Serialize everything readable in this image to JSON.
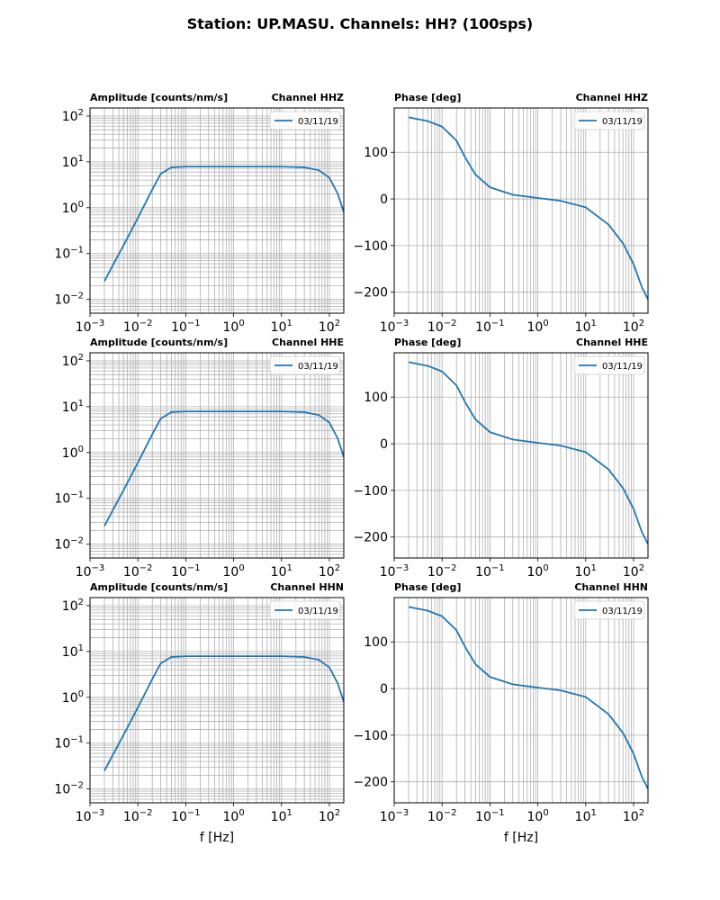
{
  "figure_title": "Station: UP.MASU. Channels: HH? (100sps)",
  "colors": {
    "series": "#1f77b4",
    "grid": "#b0b0b0",
    "frame": "#000000"
  },
  "chart_data": [
    {
      "type": "line",
      "title_left": "Amplitude [counts/nm/s]",
      "title_right": "Channel HHZ",
      "xlabel": "",
      "xscale": "log",
      "yscale": "log",
      "xlim": [
        0.001,
        200
      ],
      "ylim": [
        0.005,
        150
      ],
      "xticks": [
        0.001,
        0.01,
        0.1,
        1,
        10,
        100
      ],
      "xtick_labels": [
        [
          "10",
          "−3"
        ],
        [
          "10",
          "−2"
        ],
        [
          "10",
          "−1"
        ],
        [
          "10",
          "0"
        ],
        [
          "10",
          "1"
        ],
        [
          "10",
          "2"
        ]
      ],
      "yticks": [
        0.01,
        0.1,
        1,
        10,
        100
      ],
      "ytick_labels": [
        [
          "10",
          "−2"
        ],
        [
          "10",
          "−1"
        ],
        [
          "10",
          "0"
        ],
        [
          "10",
          "1"
        ],
        [
          "10",
          "2"
        ]
      ],
      "grid": true,
      "legend": "top-right",
      "series": [
        {
          "name": "03/11/19",
          "x": [
            0.002,
            0.005,
            0.01,
            0.02,
            0.03,
            0.05,
            0.1,
            1,
            10,
            30,
            60,
            100,
            150,
            200
          ],
          "y": [
            0.025,
            0.15,
            0.6,
            2.5,
            5.5,
            7.6,
            7.9,
            7.9,
            7.9,
            7.6,
            6.6,
            4.5,
            2.0,
            0.8
          ]
        }
      ]
    },
    {
      "type": "line",
      "title_left": "Phase [deg]",
      "title_right": "Channel HHZ",
      "xlabel": "",
      "xscale": "log",
      "yscale": "linear",
      "xlim": [
        0.001,
        200
      ],
      "ylim": [
        -245,
        195
      ],
      "xticks": [
        0.001,
        0.01,
        0.1,
        1,
        10,
        100
      ],
      "xtick_labels": [
        [
          "10",
          "−3"
        ],
        [
          "10",
          "−2"
        ],
        [
          "10",
          "−1"
        ],
        [
          "10",
          "0"
        ],
        [
          "10",
          "1"
        ],
        [
          "10",
          "2"
        ]
      ],
      "yticks": [
        100,
        0,
        -100,
        -200
      ],
      "ytick_labels": [
        [
          "100",
          ""
        ],
        [
          "0",
          ""
        ],
        [
          "−100",
          ""
        ],
        [
          "−200",
          ""
        ]
      ],
      "grid": true,
      "legend": "top-right",
      "series": [
        {
          "name": "03/11/19",
          "x": [
            0.002,
            0.005,
            0.01,
            0.02,
            0.03,
            0.05,
            0.1,
            0.3,
            1,
            3,
            10,
            30,
            60,
            100,
            150,
            200
          ],
          "y": [
            175,
            167,
            155,
            125,
            90,
            52,
            25,
            9,
            2,
            -4,
            -18,
            -55,
            -95,
            -140,
            -190,
            -215
          ]
        }
      ]
    },
    {
      "type": "line",
      "title_left": "Amplitude [counts/nm/s]",
      "title_right": "Channel HHE",
      "xlabel": "",
      "xscale": "log",
      "yscale": "log",
      "xlim": [
        0.001,
        200
      ],
      "ylim": [
        0.005,
        150
      ],
      "xticks": [
        0.001,
        0.01,
        0.1,
        1,
        10,
        100
      ],
      "xtick_labels": [
        [
          "10",
          "−3"
        ],
        [
          "10",
          "−2"
        ],
        [
          "10",
          "−1"
        ],
        [
          "10",
          "0"
        ],
        [
          "10",
          "1"
        ],
        [
          "10",
          "2"
        ]
      ],
      "yticks": [
        0.01,
        0.1,
        1,
        10,
        100
      ],
      "ytick_labels": [
        [
          "10",
          "−2"
        ],
        [
          "10",
          "−1"
        ],
        [
          "10",
          "0"
        ],
        [
          "10",
          "1"
        ],
        [
          "10",
          "2"
        ]
      ],
      "grid": true,
      "legend": "top-right",
      "series": [
        {
          "name": "03/11/19",
          "x": [
            0.002,
            0.005,
            0.01,
            0.02,
            0.03,
            0.05,
            0.1,
            1,
            10,
            30,
            60,
            100,
            150,
            200
          ],
          "y": [
            0.025,
            0.15,
            0.6,
            2.5,
            5.5,
            7.6,
            7.9,
            7.9,
            7.9,
            7.6,
            6.6,
            4.5,
            2.0,
            0.8
          ]
        }
      ]
    },
    {
      "type": "line",
      "title_left": "Phase [deg]",
      "title_right": "Channel HHE",
      "xlabel": "",
      "xscale": "log",
      "yscale": "linear",
      "xlim": [
        0.001,
        200
      ],
      "ylim": [
        -245,
        195
      ],
      "xticks": [
        0.001,
        0.01,
        0.1,
        1,
        10,
        100
      ],
      "xtick_labels": [
        [
          "10",
          "−3"
        ],
        [
          "10",
          "−2"
        ],
        [
          "10",
          "−1"
        ],
        [
          "10",
          "0"
        ],
        [
          "10",
          "1"
        ],
        [
          "10",
          "2"
        ]
      ],
      "yticks": [
        100,
        0,
        -100,
        -200
      ],
      "ytick_labels": [
        [
          "100",
          ""
        ],
        [
          "0",
          ""
        ],
        [
          "−100",
          ""
        ],
        [
          "−200",
          ""
        ]
      ],
      "grid": true,
      "legend": "top-right",
      "series": [
        {
          "name": "03/11/19",
          "x": [
            0.002,
            0.005,
            0.01,
            0.02,
            0.03,
            0.05,
            0.1,
            0.3,
            1,
            3,
            10,
            30,
            60,
            100,
            150,
            200
          ],
          "y": [
            175,
            167,
            155,
            125,
            90,
            52,
            25,
            9,
            2,
            -4,
            -18,
            -55,
            -95,
            -140,
            -190,
            -215
          ]
        }
      ]
    },
    {
      "type": "line",
      "title_left": "Amplitude [counts/nm/s]",
      "title_right": "Channel HHN",
      "xlabel": "f [Hz]",
      "xscale": "log",
      "yscale": "log",
      "xlim": [
        0.001,
        200
      ],
      "ylim": [
        0.005,
        150
      ],
      "xticks": [
        0.001,
        0.01,
        0.1,
        1,
        10,
        100
      ],
      "xtick_labels": [
        [
          "10",
          "−3"
        ],
        [
          "10",
          "−2"
        ],
        [
          "10",
          "−1"
        ],
        [
          "10",
          "0"
        ],
        [
          "10",
          "1"
        ],
        [
          "10",
          "2"
        ]
      ],
      "yticks": [
        0.01,
        0.1,
        1,
        10,
        100
      ],
      "ytick_labels": [
        [
          "10",
          "−2"
        ],
        [
          "10",
          "−1"
        ],
        [
          "10",
          "0"
        ],
        [
          "10",
          "1"
        ],
        [
          "10",
          "2"
        ]
      ],
      "grid": true,
      "legend": "top-right",
      "series": [
        {
          "name": "03/11/19",
          "x": [
            0.002,
            0.005,
            0.01,
            0.02,
            0.03,
            0.05,
            0.1,
            1,
            10,
            30,
            60,
            100,
            150,
            200
          ],
          "y": [
            0.025,
            0.15,
            0.6,
            2.5,
            5.5,
            7.6,
            7.9,
            7.9,
            7.9,
            7.6,
            6.6,
            4.5,
            2.0,
            0.8
          ]
        }
      ]
    },
    {
      "type": "line",
      "title_left": "Phase [deg]",
      "title_right": "Channel HHN",
      "xlabel": "f [Hz]",
      "xscale": "log",
      "yscale": "linear",
      "xlim": [
        0.001,
        200
      ],
      "ylim": [
        -245,
        195
      ],
      "xticks": [
        0.001,
        0.01,
        0.1,
        1,
        10,
        100
      ],
      "xtick_labels": [
        [
          "10",
          "−3"
        ],
        [
          "10",
          "−2"
        ],
        [
          "10",
          "−1"
        ],
        [
          "10",
          "0"
        ],
        [
          "10",
          "1"
        ],
        [
          "10",
          "2"
        ]
      ],
      "yticks": [
        100,
        0,
        -100,
        -200
      ],
      "ytick_labels": [
        [
          "100",
          ""
        ],
        [
          "0",
          ""
        ],
        [
          "−100",
          ""
        ],
        [
          "−200",
          ""
        ]
      ],
      "grid": true,
      "legend": "top-right",
      "series": [
        {
          "name": "03/11/19",
          "x": [
            0.002,
            0.005,
            0.01,
            0.02,
            0.03,
            0.05,
            0.1,
            0.3,
            1,
            3,
            10,
            30,
            60,
            100,
            150,
            200
          ],
          "y": [
            175,
            167,
            155,
            125,
            90,
            52,
            25,
            9,
            2,
            -4,
            -18,
            -55,
            -95,
            -140,
            -190,
            -215
          ]
        }
      ]
    }
  ]
}
